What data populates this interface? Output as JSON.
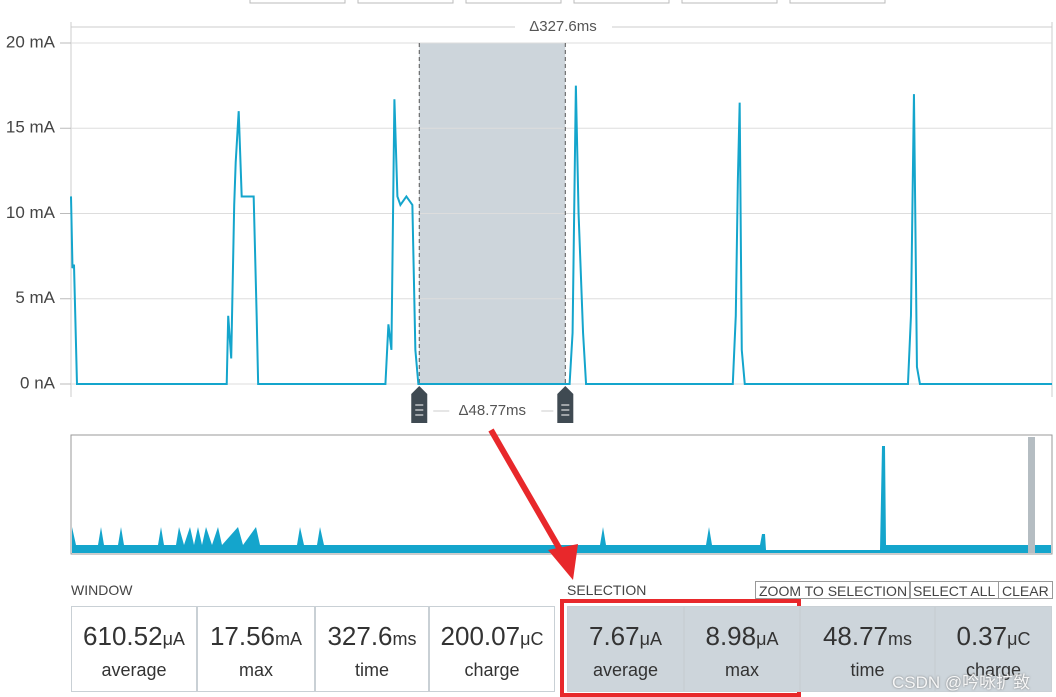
{
  "chart_data": {
    "type": "line",
    "color": "#14a5cc",
    "x": [
      0,
      0.5,
      1,
      2,
      52,
      52.5,
      53.5,
      54.5,
      55,
      56,
      57,
      59,
      61,
      62,
      62.5,
      105,
      106,
      107,
      108,
      109,
      110,
      112,
      114,
      115,
      116,
      166.5,
      167.5,
      168.6,
      169.5,
      171,
      172,
      221,
      222,
      222.7,
      223.3,
      224,
      225,
      279.5,
      280.5,
      281.5,
      282.5,
      283.5,
      327.6
    ],
    "values": [
      11,
      6.8,
      7,
      0,
      0,
      4,
      1.5,
      10.5,
      13,
      16,
      11,
      11,
      11,
      4,
      0,
      0,
      3.5,
      2,
      16.7,
      11,
      10.5,
      11,
      10.5,
      2,
      0,
      0,
      3,
      17.5,
      10,
      3,
      0,
      0,
      4,
      12,
      16.5,
      2,
      0,
      0,
      4,
      17,
      1,
      0,
      0
    ],
    "xlim": [
      0,
      327.6
    ],
    "ylim": [
      0,
      20
    ],
    "yticks": [
      {
        "value": 0,
        "label": "0 nA"
      },
      {
        "value": 5,
        "label": "5 mA"
      },
      {
        "value": 10,
        "label": "10 mA"
      },
      {
        "value": 15,
        "label": "15 mA"
      },
      {
        "value": 20,
        "label": "20 mA"
      }
    ],
    "grid": true,
    "window_span_label": "Δ327.6ms",
    "selection": [
      116.3,
      165.07
    ],
    "selection_label": "Δ48.77ms"
  },
  "window": {
    "title": "WINDOW",
    "stats": [
      {
        "value": "610.52",
        "unit": "μA",
        "label": "average"
      },
      {
        "value": "17.56",
        "unit": "mA",
        "label": "max"
      },
      {
        "value": "327.6",
        "unit": "ms",
        "label": "time"
      },
      {
        "value": "200.07",
        "unit": "μC",
        "label": "charge"
      }
    ]
  },
  "selection": {
    "title": "SELECTION",
    "buttons": [
      "ZOOM TO SELECTION",
      "SELECT ALL",
      "CLEAR"
    ],
    "stats": [
      {
        "value": "7.67",
        "unit": "μA",
        "label": "average"
      },
      {
        "value": "8.98",
        "unit": "μA",
        "label": "max"
      },
      {
        "value": "48.77",
        "unit": "ms",
        "label": "time"
      },
      {
        "value": "0.37",
        "unit": "μC",
        "label": "charge"
      }
    ]
  },
  "watermark": "CSDN @吟咏扩致"
}
